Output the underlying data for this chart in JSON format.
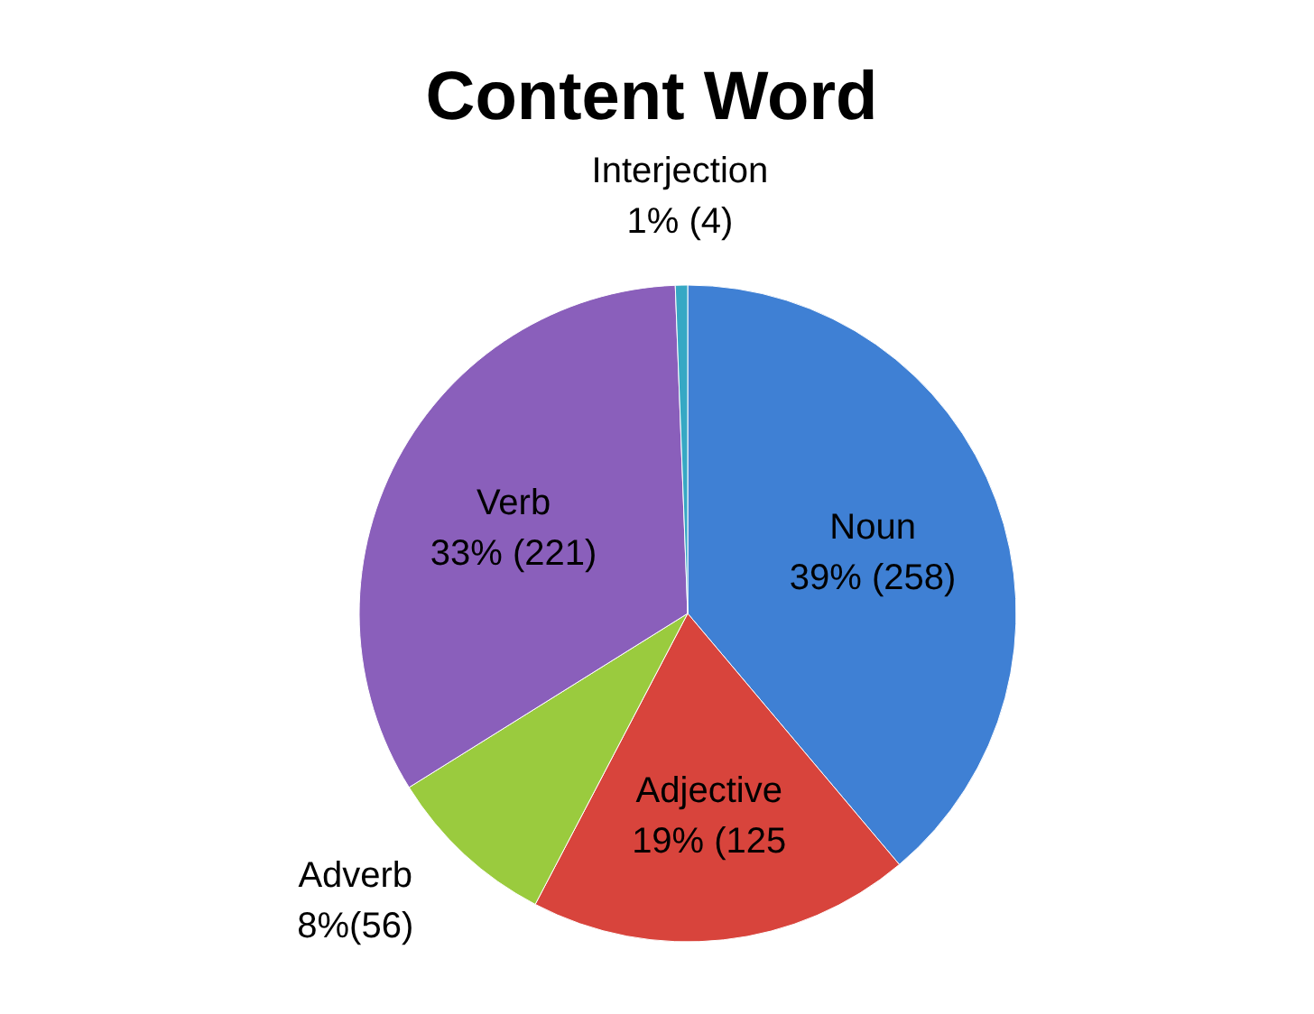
{
  "chart_data": {
    "type": "pie",
    "title": "Content Word",
    "categories": [
      "Noun",
      "Adjective",
      "Adverb",
      "Verb",
      "Interjection"
    ],
    "values": [
      258,
      125,
      56,
      221,
      4
    ],
    "colors": [
      "#3f80d4",
      "#d8443c",
      "#9acb3e",
      "#8a5fbb",
      "#36a8c4"
    ],
    "value_labels": [
      "39% (258)",
      "19% (125",
      "8%(56)",
      "33% (221)",
      "1% (4)"
    ],
    "legend": false
  }
}
